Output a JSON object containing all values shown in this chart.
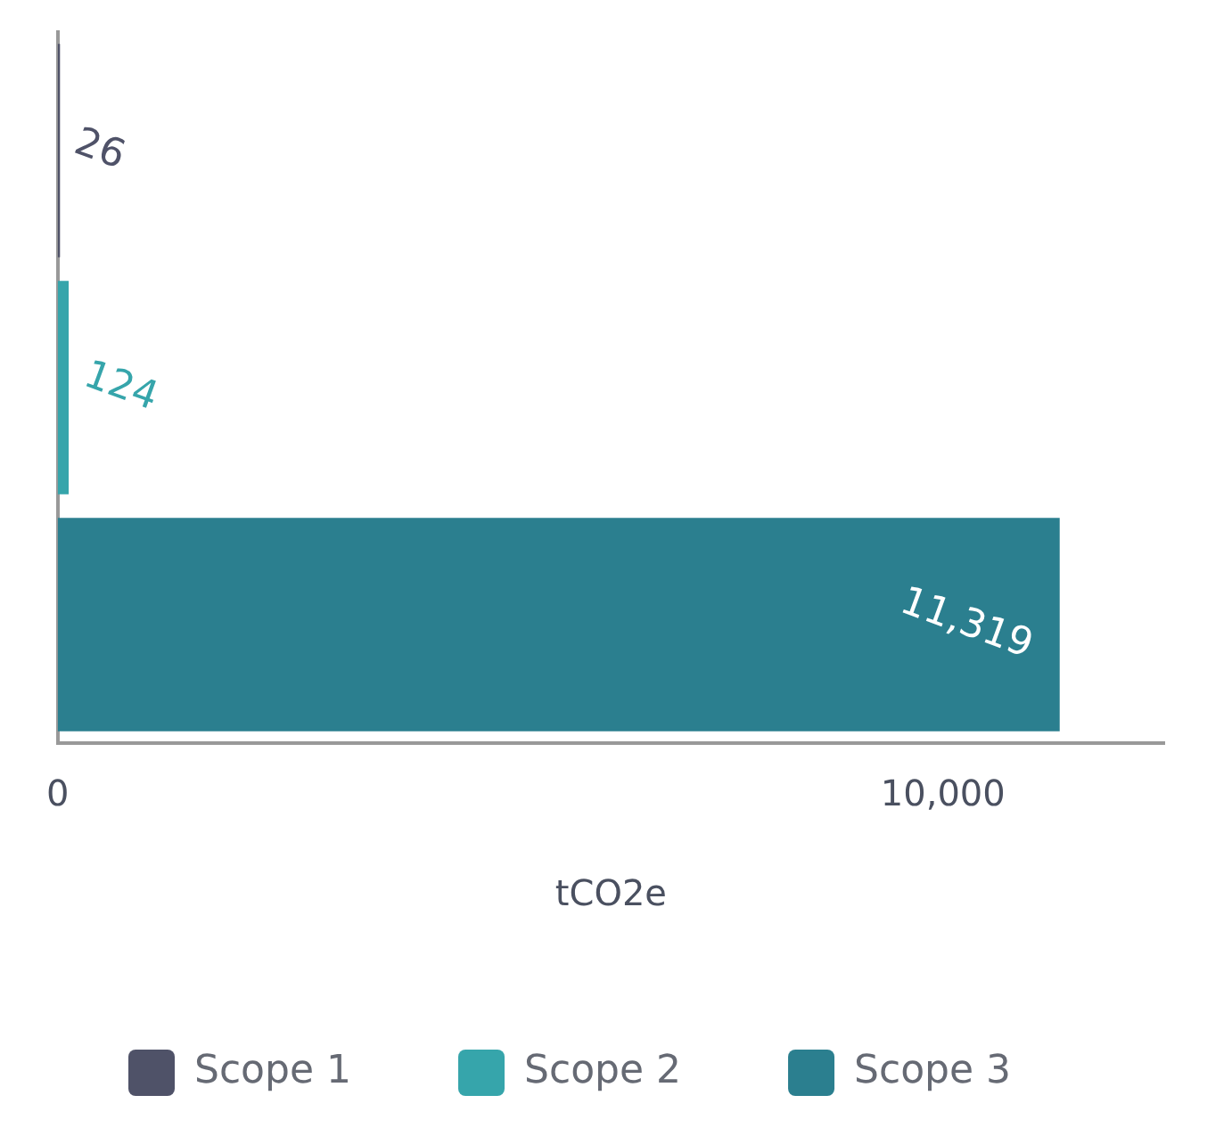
{
  "chart_data": {
    "type": "bar",
    "orientation": "horizontal",
    "xlabel": "tCO2e",
    "categories": [
      null,
      null,
      null
    ],
    "series": [
      {
        "name": "Scope 1",
        "color": "#4f5268",
        "values": [
          26,
          null,
          null
        ],
        "value_labels": [
          "26",
          null,
          null
        ]
      },
      {
        "name": "Scope 2",
        "color": "#36a5ab",
        "values": [
          null,
          124,
          null
        ],
        "value_labels": [
          null,
          "124",
          null
        ]
      },
      {
        "name": "Scope 3",
        "color": "#2b7f8f",
        "values": [
          null,
          null,
          11319
        ],
        "value_labels": [
          null,
          null,
          "11,319"
        ]
      }
    ],
    "xlim": [
      0,
      12500
    ],
    "xticks": [
      0,
      {
        "value": 10000,
        "label": "10,000"
      }
    ],
    "legend": "bottom",
    "grid": false
  }
}
